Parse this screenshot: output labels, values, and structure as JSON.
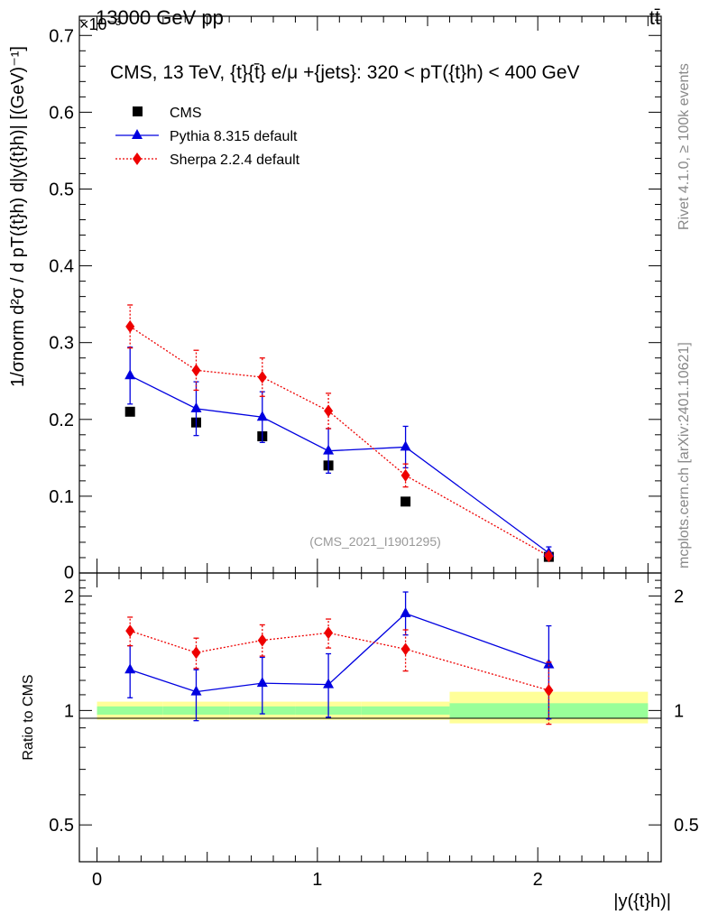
{
  "header": {
    "energy_label": "13000 GeV pp",
    "process_label": "tt̄",
    "exponent_label": "×10⁻³",
    "rivet_label": "Rivet 4.1.0, ≥ 100k events",
    "mcplots_label": "mcplots.cern.ch [arXiv:2401.10621]",
    "analysis_id": "(CMS_2021_I1901295)"
  },
  "chart_data": [
    {
      "type": "scatter",
      "title": "CMS, 13 TeV, {t}{t̄} e/μ +{jets}: 320 <  pT({t}h) < 400 GeV",
      "xlabel": "|y({t}h)|",
      "ylabel": "1/σnorm d²σ / d pT({t}h) d|y({t}h)| [(GeV)⁻¹]",
      "y_scale_note": "×10⁻³",
      "xlim": [
        -0.08,
        2.56
      ],
      "ylim": [
        0,
        0.725
      ],
      "yticks": [
        0.1,
        0.2,
        0.3,
        0.4,
        0.5,
        0.6,
        0.7
      ],
      "ytick_labels": [
        "0.1",
        "0.2",
        "0.3",
        "0.4",
        "0.5",
        "0.6",
        "0.7"
      ],
      "zero_label": "0",
      "series": [
        {
          "name": "CMS",
          "color": "#000000",
          "marker": "square",
          "x": [
            0.15,
            0.45,
            0.75,
            1.05,
            1.4,
            2.05
          ],
          "y": [
            0.21,
            0.196,
            0.178,
            0.14,
            0.093,
            0.021
          ],
          "yerr": [
            0.006,
            0.005,
            0.005,
            0.004,
            0.003,
            0.001
          ]
        },
        {
          "name": "Pythia 8.315 default",
          "color": "#0000e0",
          "marker": "triangle",
          "line": "solid",
          "x": [
            0.15,
            0.45,
            0.75,
            1.05,
            1.4,
            2.05
          ],
          "y": [
            0.257,
            0.214,
            0.203,
            0.159,
            0.164,
            0.026
          ],
          "yerr": [
            0.037,
            0.035,
            0.033,
            0.029,
            0.027,
            0.008
          ]
        },
        {
          "name": "Sherpa 2.2.4 default",
          "color": "#ee0000",
          "marker": "diamond",
          "line": "dotted",
          "x": [
            0.15,
            0.45,
            0.75,
            1.05,
            1.4,
            2.05
          ],
          "y": [
            0.321,
            0.264,
            0.255,
            0.211,
            0.127,
            0.022
          ],
          "yerr": [
            0.028,
            0.026,
            0.025,
            0.023,
            0.015,
            0.004
          ]
        }
      ]
    },
    {
      "type": "scatter",
      "title": "",
      "xlabel": "|y({t}h)|",
      "ylabel": "Ratio to CMS",
      "xlim": [
        -0.08,
        2.56
      ],
      "ylim": [
        0.4,
        2.3
      ],
      "yscale": "log",
      "yticks": [
        0.5,
        1,
        2
      ],
      "ytick_labels": [
        "0.5",
        "1",
        "2"
      ],
      "xticks": [
        0,
        1,
        2
      ],
      "xtick_labels": [
        "0",
        "1",
        "2"
      ],
      "uncertainty_bands": [
        {
          "x0": 0.0,
          "x1": 0.3,
          "inner": [
            0.975,
            1.025
          ],
          "outer": [
            0.945,
            1.055
          ]
        },
        {
          "x0": 0.3,
          "x1": 0.6,
          "inner": [
            0.975,
            1.025
          ],
          "outer": [
            0.945,
            1.055
          ]
        },
        {
          "x0": 0.6,
          "x1": 0.9,
          "inner": [
            0.975,
            1.025
          ],
          "outer": [
            0.945,
            1.055
          ]
        },
        {
          "x0": 0.9,
          "x1": 1.2,
          "inner": [
            0.975,
            1.025
          ],
          "outer": [
            0.945,
            1.055
          ]
        },
        {
          "x0": 1.2,
          "x1": 1.6,
          "inner": [
            0.975,
            1.025
          ],
          "outer": [
            0.945,
            1.055
          ]
        },
        {
          "x0": 1.6,
          "x1": 2.5,
          "inner": [
            0.955,
            1.045
          ],
          "outer": [
            0.925,
            1.12
          ]
        }
      ],
      "series": [
        {
          "name": "Pythia 8.315 default",
          "color": "#0000e0",
          "x": [
            0.15,
            0.45,
            0.75,
            1.05,
            1.4,
            2.05
          ],
          "y": [
            1.28,
            1.12,
            1.18,
            1.17,
            1.8,
            1.32
          ],
          "ylo": [
            1.08,
            0.94,
            0.98,
            0.96,
            1.58,
            0.95
          ],
          "yhi": [
            1.48,
            1.28,
            1.38,
            1.41,
            2.05,
            1.67
          ]
        },
        {
          "name": "Sherpa 2.2.4 default",
          "color": "#ee0000",
          "x": [
            0.15,
            0.45,
            0.75,
            1.05,
            1.4,
            2.05
          ],
          "y": [
            1.62,
            1.42,
            1.53,
            1.6,
            1.45,
            1.13
          ],
          "ylo": [
            1.48,
            1.29,
            1.39,
            1.46,
            1.27,
            0.92
          ],
          "yhi": [
            1.76,
            1.55,
            1.68,
            1.74,
            1.63,
            1.34
          ]
        }
      ]
    }
  ]
}
